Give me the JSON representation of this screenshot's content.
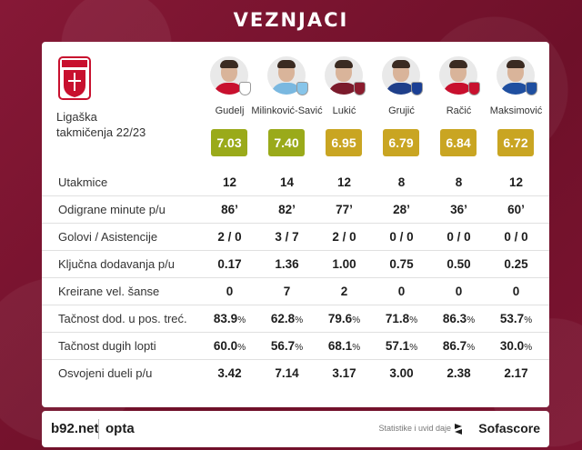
{
  "header": {
    "title": "VEZNJACI"
  },
  "league_label_line1": "Ligaška",
  "league_label_line2": "takmičenja 22/23",
  "colors": {
    "rating_high": "#9aaa1a",
    "rating_mid": "#c9a522",
    "background": "#7a1430"
  },
  "players": [
    {
      "name": "Gudelj",
      "rating": "7.03",
      "rating_color": "#9aaa1a",
      "shirt": "#c8102e",
      "club_color": "#ffffff"
    },
    {
      "name": "Milinković-Savić",
      "rating": "7.40",
      "rating_color": "#9aaa1a",
      "shirt": "#7ab8e0",
      "club_color": "#87c5ea"
    },
    {
      "name": "Lukić",
      "rating": "6.95",
      "rating_color": "#c9a522",
      "shirt": "#7b1b2c",
      "club_color": "#8b1c2e"
    },
    {
      "name": "Grujić",
      "rating": "6.79",
      "rating_color": "#c9a522",
      "shirt": "#1f3f8a",
      "club_color": "#1b3f94"
    },
    {
      "name": "Račić",
      "rating": "6.84",
      "rating_color": "#c9a522",
      "shirt": "#c8102e",
      "club_color": "#c8102e"
    },
    {
      "name": "Maksimović",
      "rating": "6.72",
      "rating_color": "#c9a522",
      "shirt": "#1f4fa0",
      "club_color": "#1f4fa0"
    }
  ],
  "stats": [
    {
      "label": "Utakmice",
      "values": [
        "12",
        "14",
        "12",
        "8",
        "8",
        "12"
      ],
      "unit": ""
    },
    {
      "label": "Odigrane minute p/u",
      "values": [
        "86’",
        "82’",
        "77’",
        "28’",
        "36’",
        "60’"
      ],
      "unit": ""
    },
    {
      "label": "Golovi / Asistencije",
      "values": [
        "2 / 0",
        "3 / 7",
        "2 / 0",
        "0 / 0",
        "0 / 0",
        "0 / 0"
      ],
      "unit": ""
    },
    {
      "label": "Ključna dodavanja p/u",
      "values": [
        "0.17",
        "1.36",
        "1.00",
        "0.75",
        "0.50",
        "0.25"
      ],
      "unit": ""
    },
    {
      "label": "Kreirane vel. šanse",
      "values": [
        "0",
        "7",
        "2",
        "0",
        "0",
        "0"
      ],
      "unit": ""
    },
    {
      "label": "Tačnost dod. u pos. treć.",
      "values": [
        "83.9",
        "62.8",
        "79.6",
        "71.8",
        "86.3",
        "53.7"
      ],
      "unit": "%"
    },
    {
      "label": "Tačnost dugih lopti",
      "values": [
        "60.0",
        "56.7",
        "68.1",
        "57.1",
        "86.7",
        "30.0"
      ],
      "unit": "%"
    },
    {
      "label": "Osvojeni dueli p/u",
      "values": [
        "3.42",
        "7.14",
        "3.17",
        "3.00",
        "2.38",
        "2.17"
      ],
      "unit": ""
    }
  ],
  "footer": {
    "brand_left": "b92.net",
    "brand_opta": "opta",
    "credit": "Statistike i uvid daje",
    "brand_right": "Sofascore"
  },
  "icons": {
    "crest": "serbia-crest-icon",
    "sofascore": "sofascore-icon"
  }
}
